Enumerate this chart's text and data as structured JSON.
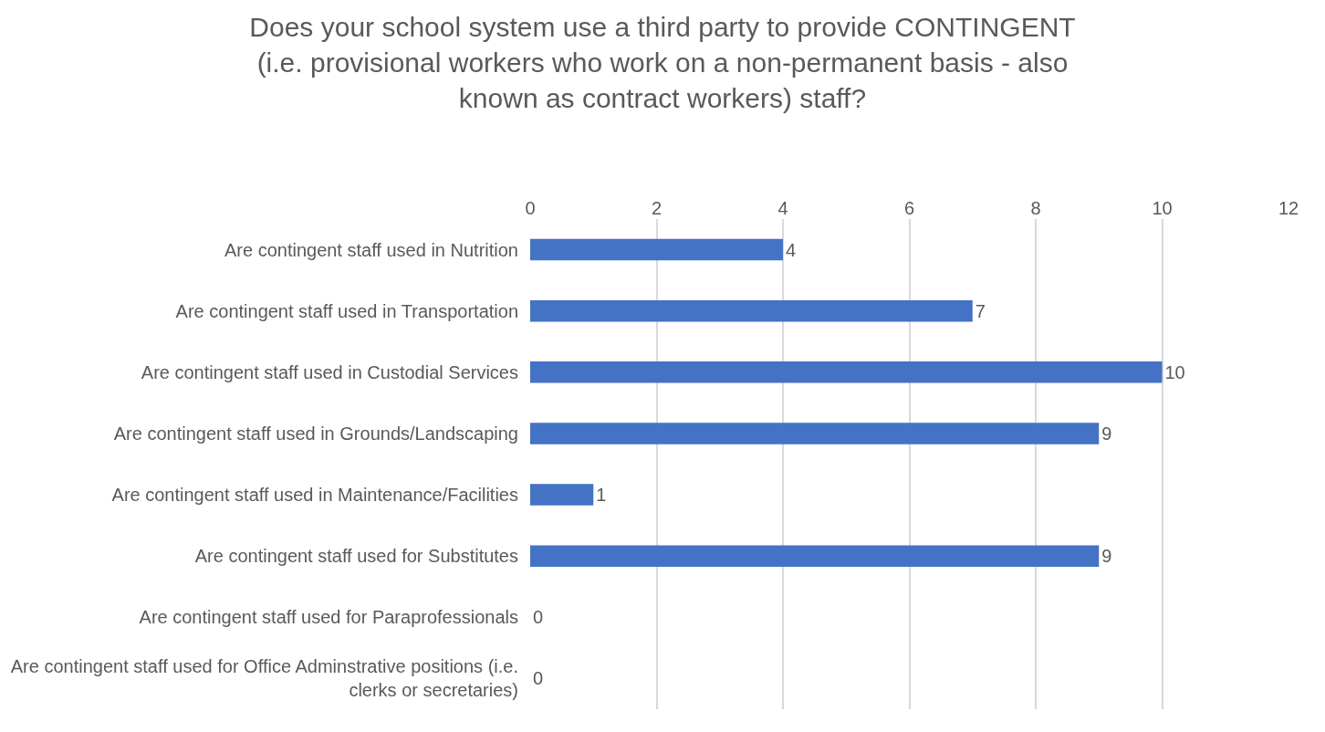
{
  "chart_data": {
    "type": "bar",
    "orientation": "horizontal",
    "title": "Does your school system use a third party to provide CONTINGENT (i.e. provisional workers who work on a non-permanent basis - also known as contract workers) staff?",
    "categories": [
      "Are contingent staff used in Nutrition",
      "Are contingent staff used in Transportation",
      "Are contingent staff used in Custodial Services",
      "Are contingent staff used in Grounds/Landscaping",
      "Are contingent staff used in Maintenance/Facilities",
      "Are contingent staff used for Substitutes",
      "Are contingent staff used for Paraprofessionals",
      "Are contingent staff used for Office Adminstrative positions (i.e. clerks or secretaries)"
    ],
    "values": [
      4,
      7,
      10,
      9,
      1,
      9,
      0,
      0
    ],
    "color": "#4472c4",
    "xlim": [
      0,
      12
    ],
    "xticks": [
      0,
      2,
      4,
      6,
      8,
      10,
      12
    ],
    "grid": "x",
    "data_labels": true,
    "legend": false
  }
}
